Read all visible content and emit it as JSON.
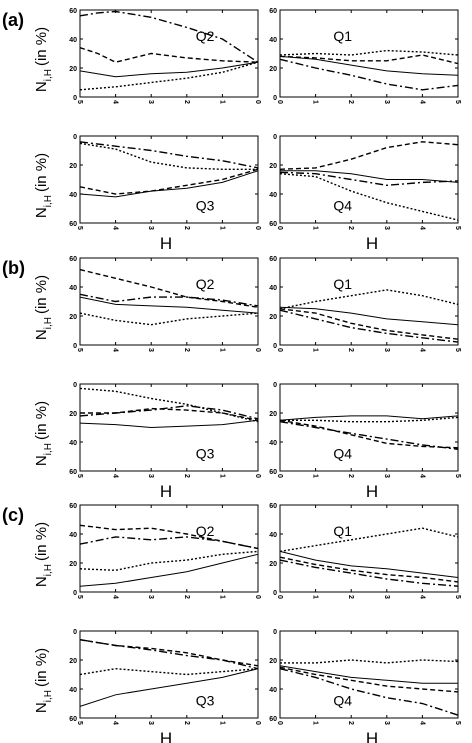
{
  "figure": {
    "group_labels": [
      "(a)",
      "(b)",
      "(c)"
    ],
    "y_axis_label": "N",
    "y_axis_subscript": "i,H",
    "y_axis_unit": "(in %)",
    "x_axis_label": "H"
  },
  "chart_data": [
    {
      "group": "(a)",
      "quadrant": "Q2",
      "type": "line",
      "ylim": [
        0,
        60
      ],
      "y_inverted": false,
      "xlim": [
        5,
        0
      ],
      "x_reversed": true,
      "xticks": [
        5,
        4,
        3,
        2,
        1,
        0
      ],
      "yticks": [
        0,
        20,
        40,
        60
      ],
      "series": [
        {
          "x": [
            5,
            4.5,
            4,
            3,
            2,
            1,
            0
          ],
          "values": [
            56,
            58,
            59,
            55,
            48,
            40,
            24
          ],
          "style": "dashdot"
        },
        {
          "x": [
            5,
            4.5,
            4,
            3,
            2,
            1,
            0
          ],
          "values": [
            34,
            30,
            24,
            30,
            27,
            25,
            24
          ],
          "style": "dashed"
        },
        {
          "x": [
            5,
            4,
            3,
            2,
            1,
            0
          ],
          "values": [
            18,
            14,
            16,
            17,
            20,
            24
          ],
          "style": "solid"
        },
        {
          "x": [
            5,
            4,
            3,
            2,
            1,
            0
          ],
          "values": [
            5,
            7,
            10,
            13,
            17,
            24
          ],
          "style": "dotted"
        }
      ]
    },
    {
      "group": "(a)",
      "quadrant": "Q1",
      "type": "line",
      "ylim": [
        0,
        60
      ],
      "y_inverted": false,
      "xlim": [
        0,
        5
      ],
      "x_reversed": false,
      "xticks": [
        0,
        1,
        2,
        3,
        4,
        5
      ],
      "yticks": [
        0,
        20,
        40,
        60
      ],
      "series": [
        {
          "x": [
            0,
            1,
            2,
            3,
            4,
            5
          ],
          "values": [
            29,
            30,
            29,
            32,
            31,
            29
          ],
          "style": "dotted"
        },
        {
          "x": [
            0,
            1,
            2,
            3,
            4,
            5
          ],
          "values": [
            28,
            27,
            25,
            25,
            29,
            23
          ],
          "style": "dashed"
        },
        {
          "x": [
            0,
            1,
            2,
            3,
            4,
            5
          ],
          "values": [
            28,
            26,
            22,
            18,
            16,
            15
          ],
          "style": "solid"
        },
        {
          "x": [
            0,
            1,
            2,
            3,
            4,
            5
          ],
          "values": [
            26,
            20,
            15,
            9,
            5,
            8
          ],
          "style": "dashdot"
        }
      ]
    },
    {
      "group": "(a)",
      "quadrant": "Q3",
      "type": "line",
      "ylim": [
        0,
        60
      ],
      "y_inverted": true,
      "xlim": [
        5,
        0
      ],
      "x_reversed": true,
      "xticks": [
        5,
        4,
        3,
        2,
        1,
        0
      ],
      "yticks": [
        0,
        20,
        40,
        60
      ],
      "series": [
        {
          "x": [
            5,
            4,
            3,
            2,
            1,
            0
          ],
          "values": [
            4,
            7,
            10,
            14,
            17,
            22
          ],
          "style": "dashdot"
        },
        {
          "x": [
            5,
            4,
            3,
            2,
            1,
            0
          ],
          "values": [
            5,
            9,
            18,
            22,
            23,
            23
          ],
          "style": "dotted"
        },
        {
          "x": [
            5,
            4,
            3,
            2,
            1,
            0
          ],
          "values": [
            35,
            40,
            38,
            34,
            30,
            23
          ],
          "style": "dashed"
        },
        {
          "x": [
            5,
            4,
            3,
            2,
            1,
            0
          ],
          "values": [
            40,
            42,
            38,
            36,
            32,
            24
          ],
          "style": "solid"
        }
      ]
    },
    {
      "group": "(a)",
      "quadrant": "Q4",
      "type": "line",
      "ylim": [
        0,
        60
      ],
      "y_inverted": true,
      "xlim": [
        0,
        5
      ],
      "x_reversed": false,
      "xticks": [
        0,
        1,
        2,
        3,
        4,
        5
      ],
      "yticks": [
        0,
        20,
        40,
        60
      ],
      "series": [
        {
          "x": [
            0,
            1,
            2,
            3,
            4,
            5
          ],
          "values": [
            24,
            24,
            26,
            30,
            30,
            32
          ],
          "style": "solid"
        },
        {
          "x": [
            0,
            1,
            2,
            3,
            4,
            5
          ],
          "values": [
            25,
            26,
            30,
            34,
            32,
            31
          ],
          "style": "dashdot"
        },
        {
          "x": [
            0,
            1,
            2,
            3,
            4,
            5
          ],
          "values": [
            23,
            22,
            16,
            8,
            4,
            6
          ],
          "style": "dashed"
        },
        {
          "x": [
            0,
            1,
            2,
            3,
            4,
            5
          ],
          "values": [
            26,
            28,
            38,
            46,
            52,
            58
          ],
          "style": "dotted"
        }
      ]
    },
    {
      "group": "(b)",
      "quadrant": "Q2",
      "type": "line",
      "ylim": [
        0,
        60
      ],
      "y_inverted": false,
      "xlim": [
        5,
        0
      ],
      "x_reversed": true,
      "xticks": [
        5,
        4,
        3,
        2,
        1,
        0
      ],
      "yticks": [
        0,
        20,
        40,
        60
      ],
      "series": [
        {
          "x": [
            5,
            4,
            3,
            2,
            1,
            0
          ],
          "values": [
            52,
            46,
            40,
            33,
            30,
            26
          ],
          "style": "dashed"
        },
        {
          "x": [
            5,
            4,
            3,
            2,
            1,
            0
          ],
          "values": [
            35,
            30,
            33,
            33,
            31,
            27
          ],
          "style": "dashdot"
        },
        {
          "x": [
            5,
            4,
            3,
            2,
            1,
            0
          ],
          "values": [
            33,
            28,
            27,
            26,
            24,
            22
          ],
          "style": "solid"
        },
        {
          "x": [
            5,
            4,
            3,
            2,
            1,
            0
          ],
          "values": [
            22,
            17,
            14,
            18,
            20,
            22
          ],
          "style": "dotted"
        }
      ]
    },
    {
      "group": "(b)",
      "quadrant": "Q1",
      "type": "line",
      "ylim": [
        0,
        60
      ],
      "y_inverted": false,
      "xlim": [
        0,
        5
      ],
      "x_reversed": false,
      "xticks": [
        0,
        1,
        2,
        3,
        4,
        5
      ],
      "yticks": [
        0,
        20,
        40,
        60
      ],
      "series": [
        {
          "x": [
            0,
            1,
            2,
            3,
            4,
            5
          ],
          "values": [
            25,
            30,
            34,
            38,
            34,
            28
          ],
          "style": "dotted"
        },
        {
          "x": [
            0,
            1,
            2,
            3,
            4,
            5
          ],
          "values": [
            26,
            25,
            22,
            18,
            16,
            14
          ],
          "style": "solid"
        },
        {
          "x": [
            0,
            1,
            2,
            3,
            4,
            5
          ],
          "values": [
            25,
            22,
            15,
            10,
            7,
            4
          ],
          "style": "dashed"
        },
        {
          "x": [
            0,
            1,
            2,
            3,
            4,
            5
          ],
          "values": [
            24,
            18,
            12,
            8,
            5,
            2
          ],
          "style": "dashdot"
        }
      ]
    },
    {
      "group": "(b)",
      "quadrant": "Q3",
      "type": "line",
      "ylim": [
        0,
        60
      ],
      "y_inverted": true,
      "xlim": [
        5,
        0
      ],
      "x_reversed": true,
      "xticks": [
        5,
        4,
        3,
        2,
        1,
        0
      ],
      "yticks": [
        0,
        20,
        40,
        60
      ],
      "series": [
        {
          "x": [
            5,
            4,
            3,
            2,
            1,
            0
          ],
          "values": [
            3,
            5,
            10,
            14,
            20,
            26
          ],
          "style": "dotted"
        },
        {
          "x": [
            5,
            4,
            3,
            2,
            1,
            0
          ],
          "values": [
            20,
            20,
            17,
            18,
            20,
            25
          ],
          "style": "dashed"
        },
        {
          "x": [
            5,
            4,
            3,
            2,
            1,
            0
          ],
          "values": [
            22,
            20,
            18,
            15,
            18,
            24
          ],
          "style": "dashdot"
        },
        {
          "x": [
            5,
            4,
            3,
            2,
            1,
            0
          ],
          "values": [
            27,
            28,
            30,
            29,
            28,
            25
          ],
          "style": "solid"
        }
      ]
    },
    {
      "group": "(b)",
      "quadrant": "Q4",
      "type": "line",
      "ylim": [
        0,
        60
      ],
      "y_inverted": true,
      "xlim": [
        0,
        5
      ],
      "x_reversed": false,
      "xticks": [
        0,
        1,
        2,
        3,
        4,
        5
      ],
      "yticks": [
        0,
        20,
        40,
        60
      ],
      "series": [
        {
          "x": [
            0,
            1,
            2,
            3,
            4,
            5
          ],
          "values": [
            25,
            23,
            22,
            22,
            24,
            22
          ],
          "style": "solid"
        },
        {
          "x": [
            0,
            1,
            2,
            3,
            4,
            5
          ],
          "values": [
            25,
            25,
            26,
            26,
            25,
            23
          ],
          "style": "dotted"
        },
        {
          "x": [
            0,
            1,
            2,
            3,
            4,
            5
          ],
          "values": [
            26,
            30,
            34,
            38,
            42,
            45
          ],
          "style": "dashdot"
        },
        {
          "x": [
            0,
            1,
            2,
            3,
            4,
            5
          ],
          "values": [
            25,
            29,
            35,
            41,
            43,
            44
          ],
          "style": "dashed"
        }
      ]
    },
    {
      "group": "(c)",
      "quadrant": "Q2",
      "type": "line",
      "ylim": [
        0,
        60
      ],
      "y_inverted": false,
      "xlim": [
        5,
        0
      ],
      "x_reversed": true,
      "xticks": [
        5,
        4,
        3,
        2,
        1,
        0
      ],
      "yticks": [
        0,
        20,
        40,
        60
      ],
      "series": [
        {
          "x": [
            5,
            4,
            3,
            2,
            1,
            0
          ],
          "values": [
            46,
            43,
            44,
            40,
            35,
            30
          ],
          "style": "dashed"
        },
        {
          "x": [
            5,
            4,
            3,
            2,
            1,
            0
          ],
          "values": [
            33,
            38,
            36,
            38,
            35,
            30
          ],
          "style": "dashdot"
        },
        {
          "x": [
            5,
            4,
            3,
            2,
            1,
            0
          ],
          "values": [
            16,
            15,
            20,
            22,
            26,
            28
          ],
          "style": "dotted"
        },
        {
          "x": [
            5,
            4,
            3,
            2,
            1,
            0
          ],
          "values": [
            4,
            6,
            10,
            14,
            20,
            26
          ],
          "style": "solid"
        }
      ]
    },
    {
      "group": "(c)",
      "quadrant": "Q1",
      "type": "line",
      "ylim": [
        0,
        60
      ],
      "y_inverted": false,
      "xlim": [
        0,
        5
      ],
      "x_reversed": false,
      "xticks": [
        0,
        1,
        2,
        3,
        4,
        5
      ],
      "yticks": [
        0,
        20,
        40,
        60
      ],
      "series": [
        {
          "x": [
            0,
            1,
            2,
            3,
            4,
            5
          ],
          "values": [
            28,
            32,
            36,
            40,
            44,
            38
          ],
          "style": "dotted"
        },
        {
          "x": [
            0,
            1,
            2,
            3,
            4,
            5
          ],
          "values": [
            28,
            22,
            18,
            16,
            13,
            10
          ],
          "style": "solid"
        },
        {
          "x": [
            0,
            1,
            2,
            3,
            4,
            5
          ],
          "values": [
            24,
            19,
            15,
            12,
            10,
            7
          ],
          "style": "dashed"
        },
        {
          "x": [
            0,
            1,
            2,
            3,
            4,
            5
          ],
          "values": [
            22,
            17,
            13,
            9,
            6,
            4
          ],
          "style": "dashdot"
        }
      ]
    },
    {
      "group": "(c)",
      "quadrant": "Q3",
      "type": "line",
      "ylim": [
        0,
        60
      ],
      "y_inverted": true,
      "xlim": [
        5,
        0
      ],
      "x_reversed": true,
      "xticks": [
        5,
        4,
        3,
        2,
        1,
        0
      ],
      "yticks": [
        0,
        20,
        40,
        60
      ],
      "series": [
        {
          "x": [
            5,
            4,
            3,
            2,
            1,
            0
          ],
          "values": [
            6,
            10,
            13,
            17,
            20,
            26
          ],
          "style": "dashdot"
        },
        {
          "x": [
            5,
            4,
            3,
            2,
            1,
            0
          ],
          "values": [
            6,
            10,
            12,
            15,
            20,
            24
          ],
          "style": "dashed"
        },
        {
          "x": [
            5,
            4,
            3,
            2,
            1,
            0
          ],
          "values": [
            30,
            26,
            28,
            30,
            28,
            26
          ],
          "style": "dotted"
        },
        {
          "x": [
            5,
            4,
            3,
            2,
            1,
            0
          ],
          "values": [
            52,
            44,
            40,
            36,
            32,
            26
          ],
          "style": "solid"
        }
      ]
    },
    {
      "group": "(c)",
      "quadrant": "Q4",
      "type": "line",
      "ylim": [
        0,
        60
      ],
      "y_inverted": true,
      "xlim": [
        0,
        5
      ],
      "x_reversed": false,
      "xticks": [
        0,
        1,
        2,
        3,
        4,
        5
      ],
      "yticks": [
        0,
        20,
        40,
        60
      ],
      "series": [
        {
          "x": [
            0,
            1,
            2,
            3,
            4,
            5
          ],
          "values": [
            22,
            22,
            20,
            22,
            20,
            21
          ],
          "style": "dotted"
        },
        {
          "x": [
            0,
            1,
            2,
            3,
            4,
            5
          ],
          "values": [
            24,
            28,
            32,
            34,
            36,
            36
          ],
          "style": "solid"
        },
        {
          "x": [
            0,
            1,
            2,
            3,
            4,
            5
          ],
          "values": [
            25,
            30,
            34,
            38,
            40,
            42
          ],
          "style": "dashed"
        },
        {
          "x": [
            0,
            1,
            2,
            3,
            4,
            5
          ],
          "values": [
            26,
            32,
            40,
            46,
            50,
            58
          ],
          "style": "dashdot"
        }
      ]
    }
  ]
}
